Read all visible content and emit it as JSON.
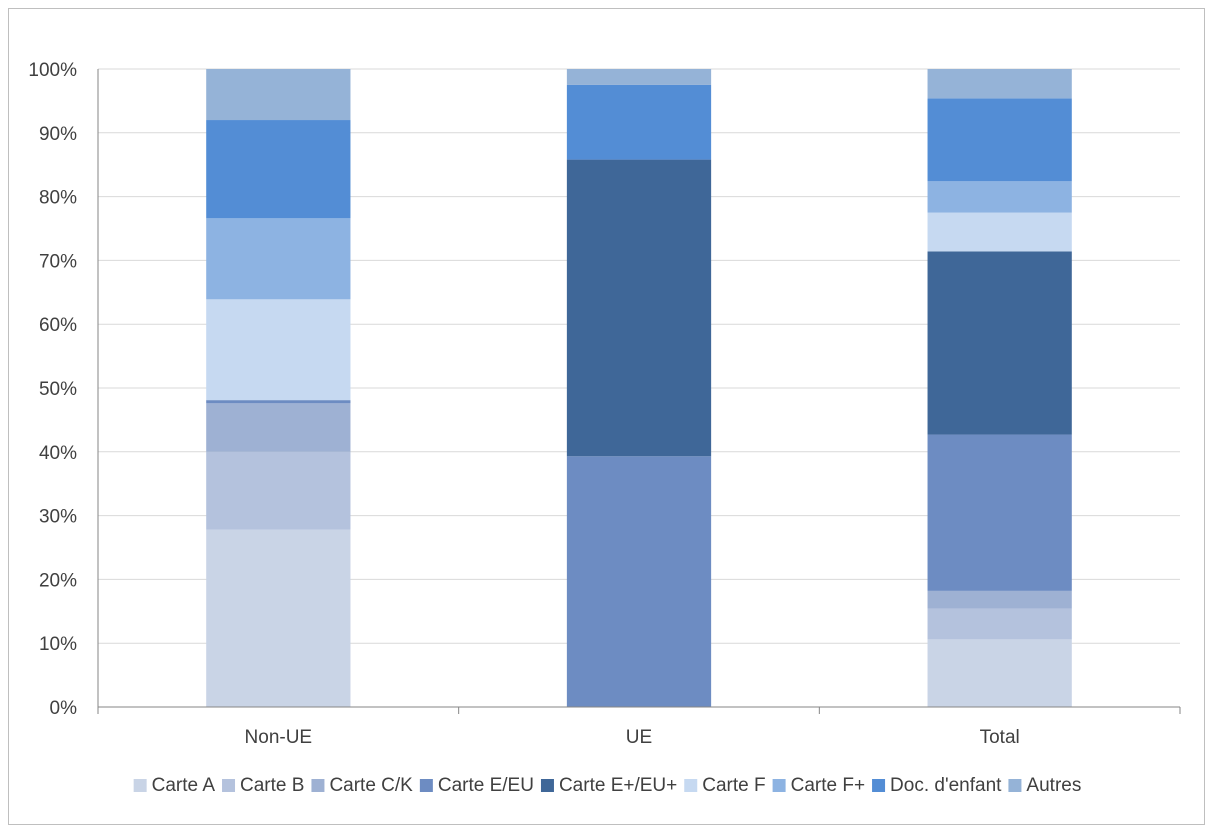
{
  "chart_data": {
    "type": "bar",
    "stacked": true,
    "normalized": true,
    "categories": [
      "Non-UE",
      "UE",
      "Total"
    ],
    "ylim": [
      0,
      100
    ],
    "yticks": [
      "0%",
      "10%",
      "20%",
      "30%",
      "40%",
      "50%",
      "60%",
      "70%",
      "80%",
      "90%",
      "100%"
    ],
    "grid": true,
    "legend_position": "bottom",
    "series": [
      {
        "name": "Carte A",
        "color": "#c9d4e6",
        "values": [
          27.8,
          0.0,
          10.6
        ]
      },
      {
        "name": "Carte B",
        "color": "#b4c2dd",
        "values": [
          12.2,
          0.0,
          4.8
        ]
      },
      {
        "name": "Carte C/K",
        "color": "#9eb1d3",
        "values": [
          7.6,
          0.0,
          2.8
        ]
      },
      {
        "name": "Carte E/EU",
        "color": "#6d8cc2",
        "values": [
          0.5,
          39.3,
          24.5
        ]
      },
      {
        "name": "Carte E+/EU+",
        "color": "#3f6798",
        "values": [
          0.0,
          46.5,
          28.7
        ]
      },
      {
        "name": "Carte F",
        "color": "#c6d9f1",
        "values": [
          15.8,
          0.0,
          6.1
        ]
      },
      {
        "name": "Carte F+",
        "color": "#8db3e2",
        "values": [
          12.7,
          0.0,
          4.9
        ]
      },
      {
        "name": "Doc. d'enfant",
        "color": "#538dd5",
        "values": [
          15.4,
          11.7,
          13.0
        ]
      },
      {
        "name": "Autres",
        "color": "#95b3d7",
        "values": [
          8.0,
          2.5,
          4.6
        ]
      }
    ]
  }
}
